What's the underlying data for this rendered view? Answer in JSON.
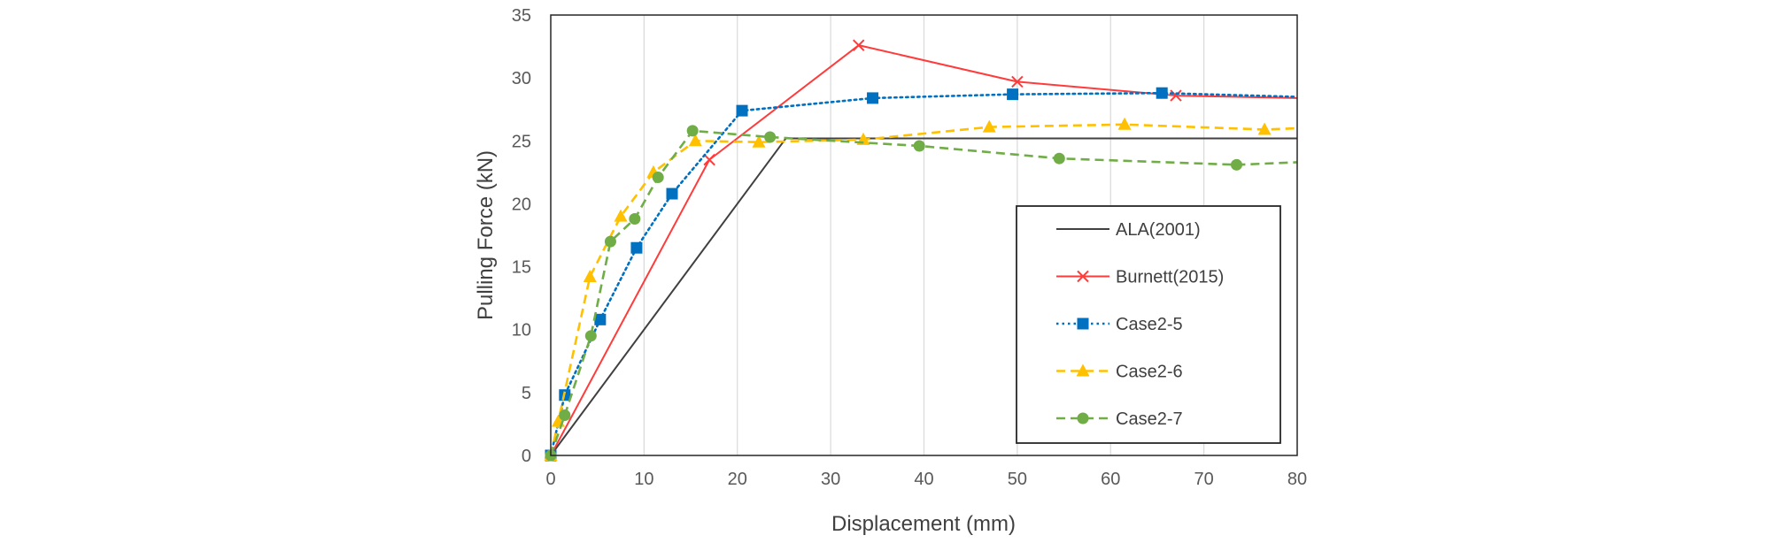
{
  "chart_data": {
    "type": "line",
    "title": "",
    "xlabel": "Displacement (mm)",
    "ylabel": "Pulling Force (kN)",
    "xlim": [
      0,
      80
    ],
    "ylim": [
      0,
      35
    ],
    "xticks": [
      0,
      10,
      20,
      30,
      40,
      50,
      60,
      70,
      80
    ],
    "yticks": [
      0,
      5,
      10,
      15,
      20,
      25,
      30,
      35
    ],
    "grid": "vertical",
    "legend_position": "bottom-right inside",
    "series": [
      {
        "name": "ALA(2001)",
        "color": "#404040",
        "dash": "solid",
        "marker": "none",
        "x": [
          0,
          25.2,
          80
        ],
        "y": [
          0,
          25.2,
          25.2
        ]
      },
      {
        "name": "Burnett(2015)",
        "color": "#FF3B3B",
        "dash": "solid",
        "marker": "x",
        "x": [
          0,
          17,
          33,
          50,
          67,
          80
        ],
        "y": [
          0,
          23.5,
          32.6,
          29.7,
          28.6,
          28.4
        ]
      },
      {
        "name": "Case2-5",
        "color": "#0070C0",
        "dash": "dotted",
        "marker": "square",
        "x": [
          0,
          1.5,
          5.3,
          9.2,
          13,
          20.5,
          34.5,
          49.5,
          65.5,
          80
        ],
        "y": [
          0,
          4.8,
          10.8,
          16.5,
          20.8,
          27.4,
          28.4,
          28.7,
          28.8,
          28.5
        ]
      },
      {
        "name": "Case2-6",
        "color": "#FFC000",
        "dash": "dashed",
        "marker": "triangle",
        "x": [
          0,
          0.8,
          4.2,
          7.5,
          11,
          15.5,
          22.3,
          33.5,
          47,
          61.5,
          76.5,
          80
        ],
        "y": [
          0,
          2.7,
          14.2,
          19,
          22.5,
          25,
          24.9,
          25.1,
          26.1,
          26.3,
          25.9,
          26
        ]
      },
      {
        "name": "Case2-7",
        "color": "#70AD47",
        "dash": "dashed",
        "marker": "circle",
        "x": [
          0,
          1.5,
          4.3,
          6.4,
          9,
          11.5,
          15.2,
          23.5,
          39.5,
          54.5,
          73.5,
          80
        ],
        "y": [
          0,
          3.2,
          9.5,
          17,
          18.8,
          22.1,
          25.8,
          25.3,
          24.6,
          23.6,
          23.1,
          23.3
        ]
      }
    ]
  }
}
